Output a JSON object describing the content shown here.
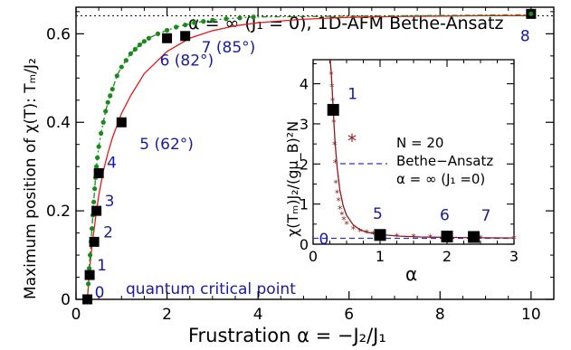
{
  "chart_data": [
    {
      "type": "scatter",
      "title": "α = ∞ (J₁ = 0), 1D-AFM Bethe-Ansatz",
      "xlabel": "Frustration α = −J₂/J₁",
      "ylabel": "Maximum position of χ(T): Tₘ/J₂",
      "xlim": [
        0,
        10.5
      ],
      "ylim": [
        0,
        0.66
      ],
      "xticks": [
        0,
        2,
        4,
        6,
        8,
        10
      ],
      "xtick_labels": [
        "0",
        "2",
        "4",
        "6",
        "8",
        "10"
      ],
      "yticks": [
        0,
        0.2,
        0.4,
        0.6
      ],
      "ytick_labels": [
        "0",
        "0.2",
        "0.4",
        "0.6"
      ],
      "asymptote": 0.6408,
      "grid": false,
      "annotation": "quantum critical point",
      "series": [
        {
          "style": "black squares",
          "points": [
            {
              "x": 0.25,
              "y": 0.0,
              "label": "0"
            },
            {
              "x": 0.3,
              "y": 0.055,
              "label": "1"
            },
            {
              "x": 0.4,
              "y": 0.13,
              "label": "2"
            },
            {
              "x": 0.45,
              "y": 0.2,
              "label": "3"
            },
            {
              "x": 0.5,
              "y": 0.285,
              "label": "4"
            },
            {
              "x": 1.0,
              "y": 0.4,
              "label": "5 (62°)"
            },
            {
              "x": 2.0,
              "y": 0.59,
              "label": "6 (82°)"
            },
            {
              "x": 2.4,
              "y": 0.595,
              "label": "7 (85°)"
            },
            {
              "x": 10.0,
              "y": 0.645,
              "label": "8"
            }
          ]
        },
        {
          "style": "green dots dash-dot",
          "x": [
            0.25,
            0.27,
            0.29,
            0.31,
            0.33,
            0.35,
            0.37,
            0.39,
            0.41,
            0.43,
            0.45,
            0.47,
            0.5,
            0.55,
            0.6,
            0.65,
            0.7,
            0.75,
            0.8,
            0.9,
            1.0,
            1.1,
            1.2,
            1.3,
            1.4,
            1.5,
            1.6,
            1.8,
            2.0,
            2.2,
            2.4,
            2.6,
            2.8,
            3.0,
            3.3,
            3.6,
            3.9,
            10.0
          ],
          "y": [
            0.0,
            0.035,
            0.07,
            0.1,
            0.13,
            0.16,
            0.19,
            0.22,
            0.25,
            0.275,
            0.3,
            0.32,
            0.345,
            0.375,
            0.4,
            0.425,
            0.445,
            0.46,
            0.475,
            0.505,
            0.525,
            0.54,
            0.555,
            0.565,
            0.575,
            0.583,
            0.59,
            0.6,
            0.608,
            0.615,
            0.62,
            0.625,
            0.628,
            0.631,
            0.634,
            0.636,
            0.638,
            0.643
          ]
        },
        {
          "style": "red solid line",
          "x": [
            0.25,
            0.3,
            0.35,
            0.4,
            0.45,
            0.5,
            0.6,
            0.7,
            0.8,
            1.0,
            1.2,
            1.5,
            2.0,
            2.5,
            3.0,
            3.5,
            4.0,
            5.0,
            6.0,
            7.0,
            8.0,
            9.0,
            10.0
          ],
          "y": [
            0.0,
            0.07,
            0.12,
            0.16,
            0.2,
            0.235,
            0.29,
            0.33,
            0.365,
            0.42,
            0.46,
            0.51,
            0.56,
            0.59,
            0.607,
            0.618,
            0.625,
            0.633,
            0.637,
            0.639,
            0.64,
            0.641,
            0.641
          ]
        }
      ]
    },
    {
      "type": "scatter",
      "title": "",
      "xlabel": "α",
      "ylabel": "χ(Tₘ)J₂/(gμ_B)²N",
      "xlim": [
        0,
        3
      ],
      "ylim": [
        0,
        4.6
      ],
      "xticks": [
        0,
        1,
        2,
        3
      ],
      "xtick_labels": [
        "0",
        "1",
        "2",
        "3"
      ],
      "yticks": [
        0,
        1,
        2,
        3,
        4
      ],
      "ytick_labels": [
        "0",
        "1",
        "2",
        "3",
        "4"
      ],
      "grid": false,
      "legend": {
        "position": "right",
        "entries": [
          "N = 20",
          "Bethe−Ansatz",
          "α = ∞ (J₁ =0)"
        ]
      },
      "series": [
        {
          "name": "N = 20",
          "style": "brown asterisks",
          "x": [
            0.27,
            0.28,
            0.29,
            0.3,
            0.31,
            0.32,
            0.33,
            0.34,
            0.36,
            0.38,
            0.4,
            0.43,
            0.46,
            0.5,
            0.6,
            0.7,
            0.8,
            0.9,
            1.0,
            1.25,
            1.5,
            1.75,
            2.0,
            2.5,
            3.0
          ],
          "y": [
            4.25,
            3.95,
            3.6,
            3.3,
            3.05,
            2.5,
            2.05,
            1.55,
            1.3,
            1.1,
            0.9,
            0.75,
            0.63,
            0.52,
            0.4,
            0.34,
            0.3,
            0.27,
            0.25,
            0.21,
            0.2,
            0.19,
            0.18,
            0.17,
            0.16
          ]
        },
        {
          "style": "brown curve",
          "x": [
            0.255,
            0.27,
            0.29,
            0.31,
            0.33,
            0.36,
            0.4,
            0.45,
            0.5,
            0.6,
            0.7,
            0.8,
            1.0,
            1.3,
            1.6,
            2.0,
            2.5,
            3.0
          ],
          "y": [
            4.6,
            4.3,
            3.7,
            3.05,
            2.5,
            1.9,
            1.35,
            0.95,
            0.72,
            0.48,
            0.36,
            0.3,
            0.24,
            0.2,
            0.18,
            0.17,
            0.16,
            0.155
          ]
        },
        {
          "name": "Bethe−Ansatz α = ∞ (J₁ =0)",
          "style": "blue dashed",
          "x": [
            0,
            3
          ],
          "y": [
            0.146,
            0.146
          ]
        },
        {
          "style": "black squares",
          "points": [
            {
              "x": 0.25,
              "y": 0.0,
              "label": "0"
            },
            {
              "x": 0.3,
              "y": 3.35,
              "label": "1"
            },
            {
              "x": 1.0,
              "y": 0.23,
              "label": "5"
            },
            {
              "x": 2.0,
              "y": 0.19,
              "label": "6"
            },
            {
              "x": 2.4,
              "y": 0.18,
              "label": "7"
            }
          ]
        }
      ],
      "extra_label": "*"
    }
  ],
  "colors": {
    "axis": "#000000",
    "squares": "#000000",
    "green": "#1a8a1a",
    "red": "#e81818",
    "brown": "#8b1a1a",
    "blue": "#1a1aa0",
    "dashedBlue": "#3030c0"
  }
}
